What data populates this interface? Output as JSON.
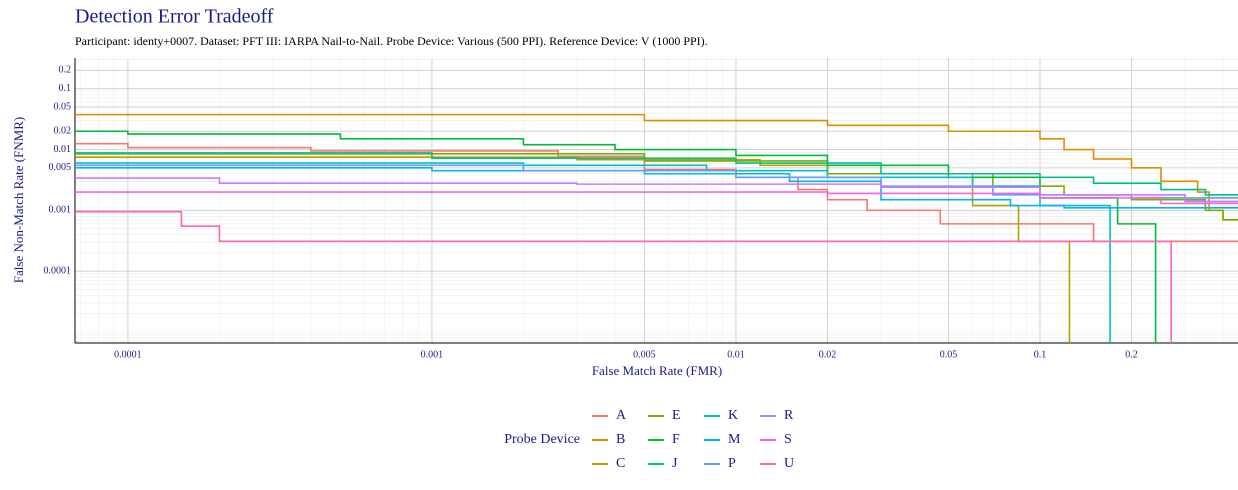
{
  "chart_data": {
    "type": "line",
    "title": "Detection Error Tradeoff",
    "subtitle": "Participant: identy+0007. Dataset: PFT III: IARPA Nail-to-Nail. Probe Device: Various (500 PPI). Reference Device: V (1000 PPI).",
    "x_label": "False Match Rate (FMR)",
    "y_label": "False Non-Match Rate (FNMR)",
    "legend_title": "Probe Device",
    "log_x": true,
    "log_y": true,
    "grid": true,
    "step": true,
    "xlim": [
      6.7e-05,
      0.448
    ],
    "ylim": [
      6.6e-06,
      0.32
    ],
    "xticks": [
      0.0001,
      0.001,
      0.005,
      0.01,
      0.02,
      0.05,
      0.1,
      0.2
    ],
    "yticks": [
      0.0001,
      0.001,
      0.005,
      0.01,
      0.02,
      0.05,
      0.1,
      0.2
    ],
    "series": [
      {
        "name": "A",
        "color": "#F8766D",
        "x": [
          6.7e-05,
          0.0001,
          0.0004,
          0.0026,
          0.005,
          0.01,
          0.016,
          0.02,
          0.027,
          0.047,
          0.15
        ],
        "values": [
          0.0125,
          0.0108,
          0.0095,
          0.0077,
          0.0047,
          0.0035,
          0.0022,
          0.0015,
          0.001,
          0.0006,
          0.00031
        ]
      },
      {
        "name": "B",
        "color": "#DE8C00",
        "x": [
          6.7e-05,
          0.005,
          0.02,
          0.05,
          0.1,
          0.12,
          0.15,
          0.2,
          0.25,
          0.33,
          0.36,
          0.4
        ],
        "values": [
          0.0375,
          0.03,
          0.025,
          0.02,
          0.015,
          0.01,
          0.007,
          0.005,
          0.003,
          0.002,
          0.001,
          0.0007
        ]
      },
      {
        "name": "C",
        "color": "#B79F00",
        "x": [
          6.7e-05,
          0.003,
          0.012,
          0.02,
          0.06,
          0.085,
          0.125
        ],
        "values": [
          0.0075,
          0.0068,
          0.0055,
          0.004,
          0.0012,
          0.00031,
          0
        ]
      },
      {
        "name": "E",
        "color": "#7CAE00",
        "x": [
          6.7e-05,
          0.005,
          0.02,
          0.07,
          0.12,
          0.2,
          0.35,
          0.4
        ],
        "values": [
          0.0085,
          0.0065,
          0.004,
          0.0025,
          0.0018,
          0.0015,
          0.001,
          0.0007
        ]
      },
      {
        "name": "F",
        "color": "#00BA38",
        "x": [
          6.7e-05,
          0.0001,
          0.0005,
          0.002,
          0.004,
          0.01,
          0.02,
          0.05,
          0.1,
          0.18,
          0.24
        ],
        "values": [
          0.02,
          0.018,
          0.015,
          0.012,
          0.01,
          0.008,
          0.0055,
          0.0035,
          0.0016,
          0.0006,
          0
        ]
      },
      {
        "name": "J",
        "color": "#00C08B",
        "x": [
          6.7e-05,
          0.001,
          0.01,
          0.03,
          0.1,
          0.15,
          0.25,
          0.35
        ],
        "values": [
          0.0088,
          0.0072,
          0.006,
          0.004,
          0.0035,
          0.0028,
          0.0022,
          0.0018
        ]
      },
      {
        "name": "K",
        "color": "#00BFC4",
        "x": [
          6.7e-05,
          0.002,
          0.008,
          0.02,
          0.06,
          0.1,
          0.17
        ],
        "values": [
          0.006,
          0.0055,
          0.0045,
          0.0035,
          0.0025,
          0.0012,
          0
        ]
      },
      {
        "name": "M",
        "color": "#00B4F0",
        "x": [
          6.7e-05,
          0.001,
          0.005,
          0.015,
          0.03,
          0.08,
          0.12
        ],
        "values": [
          0.005,
          0.0045,
          0.004,
          0.003,
          0.0015,
          0.0012,
          0.0011
        ]
      },
      {
        "name": "P",
        "color": "#619CFF",
        "x": [
          6.7e-05,
          0.002,
          0.01,
          0.03,
          0.07,
          0.2
        ],
        "values": [
          0.0055,
          0.0045,
          0.0035,
          0.0025,
          0.0018,
          0.0016
        ]
      },
      {
        "name": "R",
        "color": "#C77CFF",
        "x": [
          6.7e-05,
          0.0002,
          0.003,
          0.03,
          0.1,
          0.3
        ],
        "values": [
          0.0034,
          0.0028,
          0.0027,
          0.0024,
          0.0018,
          0.0014
        ]
      },
      {
        "name": "S",
        "color": "#F564E3",
        "x": [
          6.7e-05,
          0.02,
          0.1,
          0.25
        ],
        "values": [
          0.002,
          0.0019,
          0.0016,
          0.0013
        ]
      },
      {
        "name": "U",
        "color": "#FF64B0",
        "x": [
          6.7e-05,
          0.00015,
          0.0002,
          0.27
        ],
        "values": [
          0.00095,
          0.00055,
          0.00031,
          0
        ]
      }
    ]
  }
}
